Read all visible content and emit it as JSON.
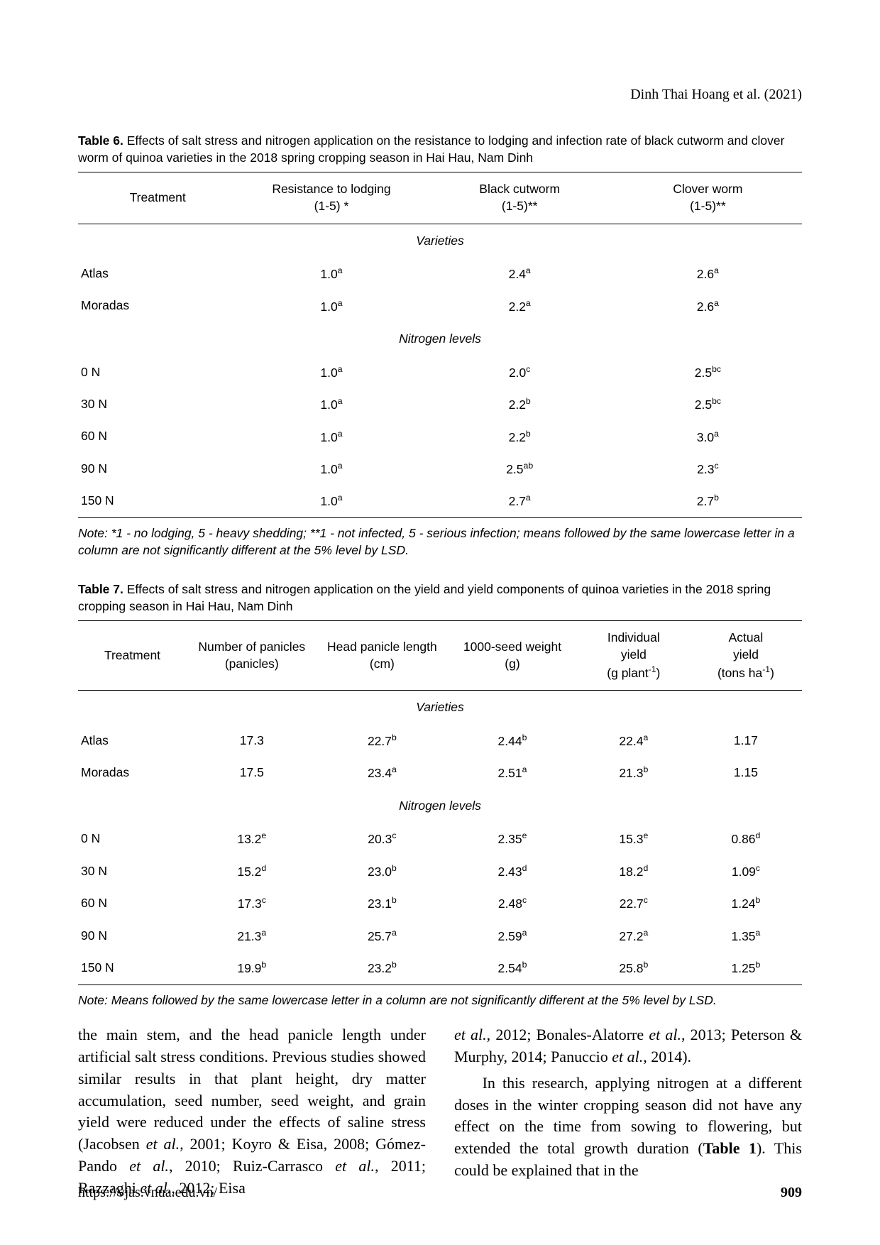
{
  "header": {
    "author_line": "Dinh Thai Hoang et al. (2021)"
  },
  "table6": {
    "caption_bold": "Table 6.",
    "caption_rest": " Effects of salt stress and nitrogen application on the resistance to lodging and infection rate of black cutworm and clover worm of quinoa varieties in the 2018 spring cropping season in Hai Hau, Nam Dinh",
    "headers": {
      "c1": "Treatment",
      "c2_l1": "Resistance to lodging",
      "c2_l2": "(1-5) *",
      "c3_l1": "Black cutworm",
      "c3_l2": "(1-5)**",
      "c4_l1": "Clover worm",
      "c4_l2": "(1-5)**"
    },
    "section1": "Varieties",
    "section2": "Nitrogen levels",
    "rows_varieties": [
      {
        "t": "Atlas",
        "r": "1.0",
        "rs": "a",
        "b": "2.4",
        "bs": "a",
        "c": "2.6",
        "cs": "a"
      },
      {
        "t": "Moradas",
        "r": "1.0",
        "rs": "a",
        "b": "2.2",
        "bs": "a",
        "c": "2.6",
        "cs": "a"
      }
    ],
    "rows_nitrogen": [
      {
        "t": "0 N",
        "r": "1.0",
        "rs": "a",
        "b": "2.0",
        "bs": "c",
        "c": "2.5",
        "cs": "bc"
      },
      {
        "t": "30 N",
        "r": "1.0",
        "rs": "a",
        "b": "2.2",
        "bs": "b",
        "c": "2.5",
        "cs": "bc"
      },
      {
        "t": "60 N",
        "r": "1.0",
        "rs": "a",
        "b": "2.2",
        "bs": "b",
        "c": "3.0",
        "cs": "a"
      },
      {
        "t": "90 N",
        "r": "1.0",
        "rs": "a",
        "b": "2.5",
        "bs": "ab",
        "c": "2.3",
        "cs": "c"
      },
      {
        "t": "150 N",
        "r": "1.0",
        "rs": "a",
        "b": "2.7",
        "bs": "a",
        "c": "2.7",
        "cs": "b"
      }
    ],
    "note": "Note: *1 - no lodging, 5 - heavy shedding; **1 - not infected, 5 - serious infection; means followed by the same lowercase letter in a column are not significantly different at the 5% level by LSD."
  },
  "table7": {
    "caption_bold": "Table 7.",
    "caption_rest": " Effects of salt stress and nitrogen application on the yield and yield components of quinoa varieties in the 2018 spring cropping season in Hai Hau, Nam Dinh",
    "headers": {
      "c1": "Treatment",
      "c2_l1": "Number of panicles",
      "c2_l2": "(panicles)",
      "c3_l1": "Head panicle length",
      "c3_l2": "(cm)",
      "c4_l1": "1000-seed weight",
      "c4_l2": "(g)",
      "c5_l1": "Individual",
      "c5_l2": "yield",
      "c5_l3_a": "(g plant",
      "c5_l3_b": ")",
      "c6_l1": "Actual",
      "c6_l2": "yield",
      "c6_l3_a": "(tons ha",
      "c6_l3_b": ")"
    },
    "section1": "Varieties",
    "section2": "Nitrogen levels",
    "rows_varieties": [
      {
        "t": "Atlas",
        "np": "17.3",
        "nps": "",
        "hp": "22.7",
        "hps": "b",
        "sw": "2.44",
        "sws": "b",
        "iy": "22.4",
        "iys": "a",
        "ay": "1.17",
        "ays": ""
      },
      {
        "t": "Moradas",
        "np": "17.5",
        "nps": "",
        "hp": "23.4",
        "hps": "a",
        "sw": "2.51",
        "sws": "a",
        "iy": "21.3",
        "iys": "b",
        "ay": "1.15",
        "ays": ""
      }
    ],
    "rows_nitrogen": [
      {
        "t": "0 N",
        "np": "13.2",
        "nps": "e",
        "hp": "20.3",
        "hps": "c",
        "sw": "2.35",
        "sws": "e",
        "iy": "15.3",
        "iys": "e",
        "ay": "0.86",
        "ays": "d"
      },
      {
        "t": "30 N",
        "np": "15.2",
        "nps": "d",
        "hp": "23.0",
        "hps": "b",
        "sw": "2.43",
        "sws": "d",
        "iy": "18.2",
        "iys": "d",
        "ay": "1.09",
        "ays": "c"
      },
      {
        "t": "60 N",
        "np": "17.3",
        "nps": "c",
        "hp": "23.1",
        "hps": "b",
        "sw": "2.48",
        "sws": "c",
        "iy": "22.7",
        "iys": "c",
        "ay": "1.24",
        "ays": "b"
      },
      {
        "t": "90 N",
        "np": "21.3",
        "nps": "a",
        "hp": "25.7",
        "hps": "a",
        "sw": "2.59",
        "sws": "a",
        "iy": "27.2",
        "iys": "a",
        "ay": "1.35",
        "ays": "a"
      },
      {
        "t": "150 N",
        "np": "19.9",
        "nps": "b",
        "hp": "23.2",
        "hps": "b",
        "sw": "2.54",
        "sws": "b",
        "iy": "25.8",
        "iys": "b",
        "ay": "1.25",
        "ays": "b"
      }
    ],
    "note": "Note: Means followed by the same lowercase letter in a column are not significantly different at the 5% level by LSD."
  },
  "body": {
    "col1": "the main stem, and the head panicle length under artificial salt stress conditions. Previous studies showed similar results in that plant height, dry matter accumulation, seed number, seed weight, and grain yield were reduced under the effects of saline stress (Jacobsen et al., 2001; Koyro & Eisa, 2008; Gómez-Pando et al., 2010; Ruiz-Carrasco et al., 2011; Razzaghi et al., 2012; Eisa",
    "col2a": "et al., 2012; Bonales-Alatorre et al., 2013; Peterson & Murphy, 2014; Panuccio et al., 2014).",
    "col2b": "In this research, applying nitrogen at a different doses in the winter cropping season did not have any effect on the time from sowing to flowering, but extended the total growth duration (Table 1). This could be explained that in the"
  },
  "footer": {
    "url": "https://vjas.vnua.edu.vn/",
    "page": "909"
  }
}
